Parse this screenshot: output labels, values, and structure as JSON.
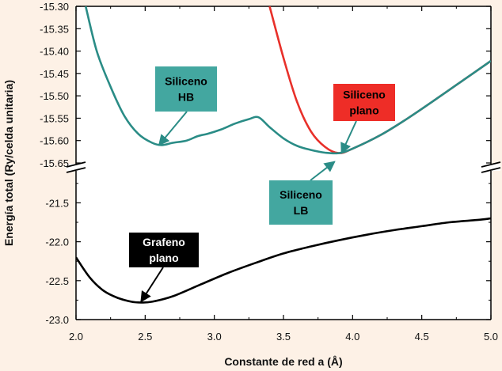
{
  "chart_data": {
    "type": "line",
    "title": "",
    "xlabel": "Constante de red a (Å)",
    "ylabel": "Energía total (Ry/celda unitaria)",
    "xlim": [
      2.0,
      5.0
    ],
    "x_ticks": [
      "2.0",
      "2.5",
      "3.0",
      "3.5",
      "4.0",
      "4.5",
      "5.0"
    ],
    "axis_break": true,
    "upper_panel": {
      "ylim": [
        -15.65,
        -15.3
      ],
      "y_ticks": [
        "-15.30",
        "-15.35",
        "-15.40",
        "-15.45",
        "-15.50",
        "-15.55",
        "-15.60",
        "-15.65"
      ]
    },
    "lower_panel": {
      "ylim": [
        -23.0,
        -21.15
      ],
      "y_ticks": [
        "-21.5",
        "-22.0",
        "-22.5",
        "-23.0"
      ]
    },
    "series": [
      {
        "name": "Siliceno HB",
        "panel": "upper",
        "color": "#2a8c86",
        "x": [
          2.07,
          2.15,
          2.25,
          2.35,
          2.45,
          2.55,
          2.62,
          2.7,
          2.8,
          2.88,
          2.95,
          3.05,
          3.15,
          3.25,
          3.32,
          3.4,
          3.5,
          3.6,
          3.7,
          3.8,
          3.9,
          4.0,
          4.2,
          4.4,
          4.6,
          4.8,
          5.0
        ],
        "y": [
          -15.3,
          -15.4,
          -15.48,
          -15.545,
          -15.585,
          -15.605,
          -15.61,
          -15.605,
          -15.6,
          -15.59,
          -15.585,
          -15.575,
          -15.562,
          -15.552,
          -15.548,
          -15.57,
          -15.595,
          -15.612,
          -15.621,
          -15.627,
          -15.628,
          -15.618,
          -15.588,
          -15.55,
          -15.508,
          -15.465,
          -15.422
        ]
      },
      {
        "name": "Siliceno plano",
        "panel": "upper",
        "color": "#e8302a",
        "x": [
          3.4,
          3.5,
          3.6,
          3.7,
          3.8,
          3.9,
          4.0,
          4.2,
          4.4,
          4.6,
          4.8,
          5.0
        ],
        "y": [
          -15.3,
          -15.415,
          -15.515,
          -15.58,
          -15.614,
          -15.628,
          -15.618,
          -15.588,
          -15.55,
          -15.508,
          -15.465,
          -15.422
        ]
      },
      {
        "name": "Grafeno plano",
        "panel": "lower",
        "color": "#000000",
        "x": [
          2.0,
          2.1,
          2.2,
          2.3,
          2.4,
          2.47,
          2.55,
          2.7,
          2.9,
          3.1,
          3.3,
          3.5,
          3.7,
          3.9,
          4.1,
          4.3,
          4.5,
          4.7,
          4.9,
          5.0
        ],
        "y": [
          -22.2,
          -22.46,
          -22.63,
          -22.72,
          -22.77,
          -22.78,
          -22.77,
          -22.7,
          -22.55,
          -22.4,
          -22.27,
          -22.15,
          -22.06,
          -21.98,
          -21.91,
          -21.85,
          -21.8,
          -21.75,
          -21.72,
          -21.7
        ]
      }
    ],
    "annotations": [
      {
        "name": "siliceno-hb",
        "lines": [
          "Siliceno",
          "HB"
        ],
        "box_color": "#43a7a0",
        "text_color": "#000000",
        "arrow_to": {
          "x": 2.6,
          "y": -15.61,
          "panel": "upper"
        }
      },
      {
        "name": "siliceno-plano",
        "lines": [
          "Siliceno",
          "plano"
        ],
        "box_color": "#ee2d27",
        "text_color": "#000000",
        "arrow_to": {
          "x": 3.92,
          "y": -15.628,
          "panel": "upper"
        }
      },
      {
        "name": "siliceno-lb",
        "lines": [
          "Siliceno",
          "LB"
        ],
        "box_color": "#43a7a0",
        "text_color": "#000000",
        "arrow_to": {
          "x": 3.87,
          "y": -15.647,
          "panel": "upper"
        }
      },
      {
        "name": "grafeno-plano",
        "lines": [
          "Grafeno",
          "plano"
        ],
        "box_color": "#000000",
        "text_color": "#ffffff",
        "arrow_to": {
          "x": 2.47,
          "y": -22.77,
          "panel": "lower"
        }
      }
    ]
  }
}
